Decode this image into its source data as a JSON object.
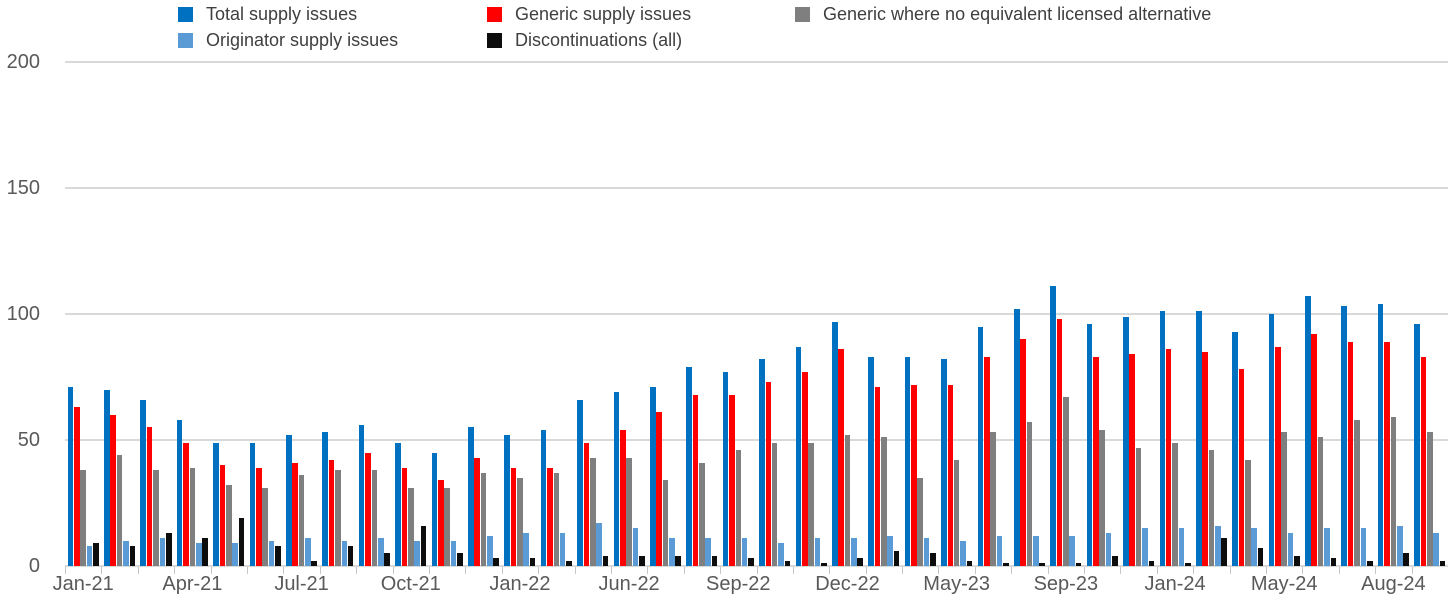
{
  "window_title": "Chart",
  "legend": {
    "columns": [
      {
        "items": [
          {
            "label": "Total supply issues",
            "color": "#0070C0"
          },
          {
            "label": "Originator supply issues",
            "color": "#5B9BD5"
          }
        ]
      },
      {
        "items": [
          {
            "label": "Generic supply issues",
            "color": "#FF0000"
          },
          {
            "label": "Discontinuations (all)",
            "color": "#0D0D0D"
          }
        ]
      },
      {
        "items": [
          {
            "label": "Generic where no equivalent licensed alternative",
            "color": "#7F7F7F"
          }
        ]
      }
    ]
  },
  "chart_data": {
    "type": "bar",
    "title": "",
    "xlabel": "",
    "ylabel": "",
    "ylim": [
      0,
      200
    ],
    "yticks": [
      0,
      50,
      100,
      150,
      200
    ],
    "grid": true,
    "legend_position": "top",
    "x_labels": [
      "Jan-21",
      "",
      "",
      "Apr-21",
      "",
      "",
      "Jul-21",
      "",
      "",
      "Oct-21",
      "",
      "",
      "Jan-22",
      "",
      "",
      "Jun-22",
      "",
      "",
      "Sep-22",
      "",
      "",
      "Dec-22",
      "",
      "",
      "May-23",
      "",
      "",
      "Sep-23",
      "",
      "",
      "Jan-24",
      "",
      "",
      "May-24",
      "",
      "",
      "Aug-24",
      ""
    ],
    "series": [
      {
        "key": "total",
        "name": "Total supply issues",
        "color": "#0070C0",
        "values": [
          71,
          70,
          66,
          58,
          49,
          49,
          52,
          53,
          56,
          49,
          45,
          55,
          52,
          54,
          66,
          69,
          71,
          79,
          77,
          82,
          87,
          97,
          83,
          83,
          82,
          95,
          102,
          111,
          96,
          99,
          101,
          101,
          93,
          100,
          107,
          103,
          104,
          96
        ]
      },
      {
        "key": "generic",
        "name": "Generic supply issues",
        "color": "#FF0000",
        "values": [
          63,
          60,
          55,
          49,
          40,
          39,
          41,
          42,
          45,
          39,
          34,
          43,
          39,
          39,
          49,
          54,
          61,
          68,
          68,
          73,
          77,
          86,
          71,
          72,
          72,
          83,
          90,
          98,
          83,
          84,
          86,
          85,
          78,
          87,
          92,
          89,
          89,
          83
        ]
      },
      {
        "key": "generic-no-licensed-alternative",
        "name": "Generic where no equivalent licensed alternative",
        "color": "#7F7F7F",
        "values": [
          38,
          44,
          38,
          39,
          32,
          31,
          36,
          38,
          38,
          31,
          31,
          37,
          35,
          37,
          43,
          43,
          34,
          41,
          46,
          49,
          49,
          52,
          51,
          35,
          42,
          53,
          57,
          67,
          54,
          47,
          49,
          46,
          42,
          53,
          51,
          58,
          59,
          53
        ]
      },
      {
        "key": "originator",
        "name": "Originator supply issues",
        "color": "#5B9BD5",
        "values": [
          8,
          10,
          11,
          9,
          9,
          10,
          11,
          10,
          11,
          10,
          10,
          12,
          13,
          13,
          17,
          15,
          11,
          11,
          11,
          9,
          11,
          11,
          12,
          11,
          10,
          12,
          12,
          12,
          13,
          15,
          15,
          16,
          15,
          13,
          15,
          15,
          16,
          13
        ]
      },
      {
        "key": "discontinuations",
        "name": "Discontinuations (all)",
        "color": "#0D0D0D",
        "values": [
          9,
          8,
          13,
          11,
          19,
          8,
          2,
          8,
          5,
          16,
          5,
          3,
          3,
          2,
          4,
          4,
          4,
          4,
          3,
          2,
          1,
          3,
          6,
          5,
          2,
          1,
          1,
          1,
          4,
          2,
          1,
          11,
          7,
          4,
          3,
          2,
          5,
          2
        ]
      }
    ]
  }
}
